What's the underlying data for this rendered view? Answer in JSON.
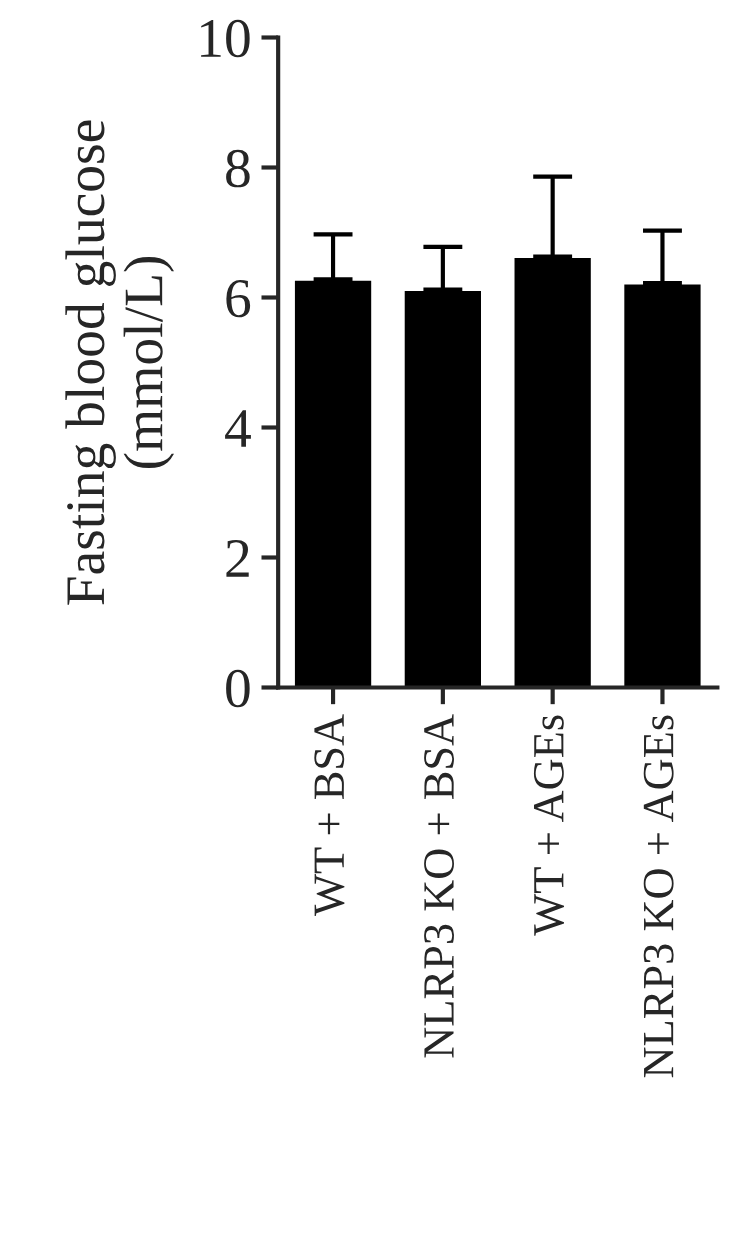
{
  "chart_data": {
    "type": "bar",
    "ylabel": "Fasting blood glucose\n(mmol/L)",
    "categories": [
      "WT + BSA",
      "NLRP3 KO + BSA",
      "WT + AGEs",
      "NLRP3 KO + AGEs"
    ],
    "values": [
      6.28,
      6.12,
      6.63,
      6.22
    ],
    "errors": [
      [
        6.28,
        6.97
      ],
      [
        6.12,
        6.78
      ],
      [
        6.63,
        7.86
      ],
      [
        6.22,
        7.03
      ]
    ],
    "color": "#000000",
    "ylim": [
      0,
      10
    ],
    "yticks": [
      0,
      2,
      4,
      6,
      8,
      10
    ],
    "grid": false
  }
}
